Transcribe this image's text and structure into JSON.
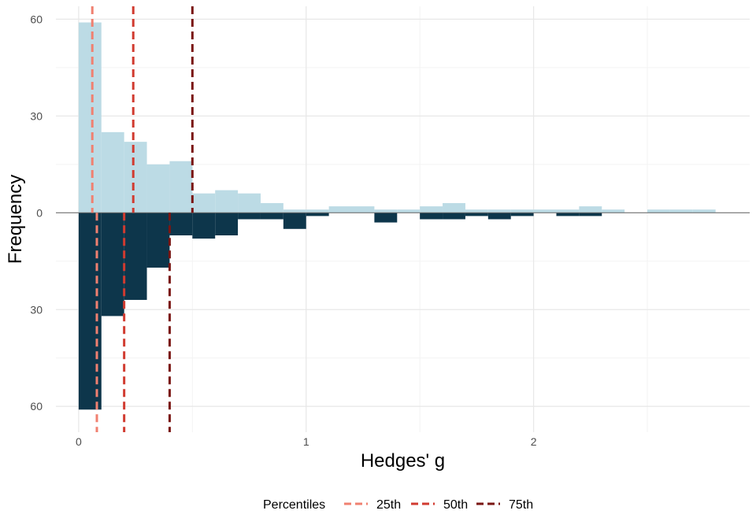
{
  "chart_data": {
    "type": "bar",
    "title": "",
    "xlabel": "Hedges' g",
    "ylabel": "Frequency",
    "xlim": [
      -0.1,
      2.95
    ],
    "ylim": [
      -68,
      64
    ],
    "bin_width": 0.1,
    "x_ticks": [
      0,
      1,
      2
    ],
    "x_tick_labels": [
      "0",
      "1",
      "2"
    ],
    "y_ticks": [
      60,
      30,
      0,
      -30,
      -60
    ],
    "y_tick_labels": [
      "60",
      "30",
      "0",
      "30",
      "60"
    ],
    "grid": true,
    "colors": {
      "top_bars": "#bcdbe5",
      "bottom_bars": "#0d364b",
      "zero_line": "#666666",
      "grid_major": "#e8e8e8",
      "grid_minor": "#f3f3f3"
    },
    "series": [
      {
        "name": "upper",
        "direction": "up",
        "bin_starts": [
          0.0,
          0.1,
          0.2,
          0.3,
          0.4,
          0.5,
          0.6,
          0.7,
          0.8,
          0.9,
          1.0,
          1.1,
          1.2,
          1.3,
          1.4,
          1.5,
          1.6,
          1.7,
          1.8,
          1.9,
          2.0,
          2.1,
          2.2,
          2.3,
          2.4,
          2.5,
          2.6,
          2.7
        ],
        "values": [
          59,
          25,
          22,
          15,
          16,
          6,
          7,
          6,
          3,
          1,
          1,
          2,
          2,
          1,
          1,
          2,
          3,
          1,
          1,
          1,
          1,
          1,
          2,
          1,
          0,
          1,
          1,
          1
        ]
      },
      {
        "name": "lower",
        "direction": "down",
        "bin_starts": [
          0.0,
          0.1,
          0.2,
          0.3,
          0.4,
          0.5,
          0.6,
          0.7,
          0.8,
          0.9,
          1.0,
          1.1,
          1.2,
          1.3,
          1.4,
          1.5,
          1.6,
          1.7,
          1.8,
          1.9,
          2.0,
          2.1,
          2.2,
          2.3,
          2.4,
          2.5,
          2.6,
          2.7
        ],
        "values": [
          61,
          32,
          27,
          17,
          7,
          8,
          7,
          2,
          2,
          5,
          1,
          0,
          0,
          3,
          0,
          2,
          2,
          1,
          2,
          1,
          0,
          1,
          1,
          0,
          0,
          0,
          0,
          0
        ]
      }
    ],
    "percentile_lines": [
      {
        "label": "25th",
        "x_upper": 0.06,
        "x_lower": 0.08,
        "color": "#f08070"
      },
      {
        "label": "50th",
        "x_upper": 0.24,
        "x_lower": 0.2,
        "color": "#d13b30"
      },
      {
        "label": "75th",
        "x_upper": 0.5,
        "x_lower": 0.4,
        "color": "#7a1512"
      }
    ],
    "legend": {
      "title": "Percentiles",
      "position": "bottom",
      "entries": [
        "25th",
        "50th",
        "75th"
      ]
    }
  }
}
